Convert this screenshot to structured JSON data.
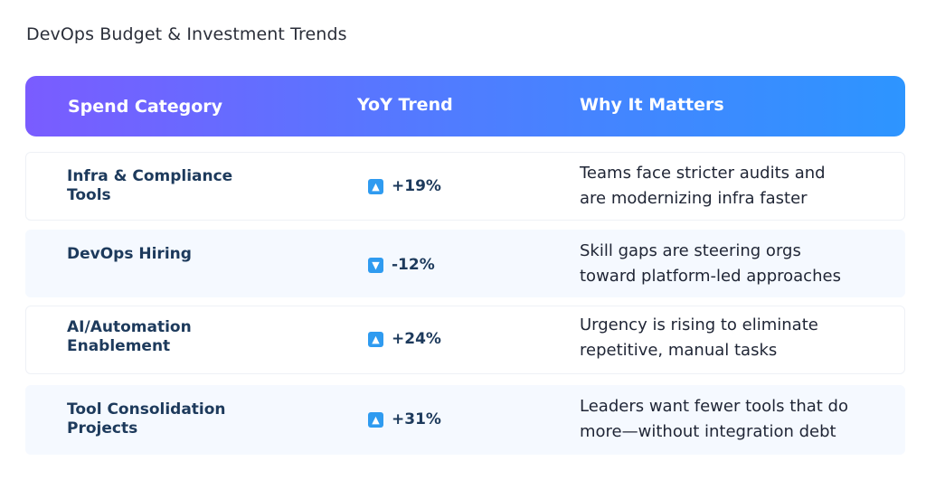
{
  "title": "DevOps Budget & Investment Trends",
  "columns": [
    "Spend Category",
    "YoY Trend",
    "Why It Matters"
  ],
  "rows": [
    {
      "category_line1": "Infra & Compliance",
      "category_line2": "Tools",
      "trend": "+19%",
      "direction": "up",
      "why_line1": "Teams face stricter audits and",
      "why_line2": "are modernizing infra faster"
    },
    {
      "category_line1": "DevOps Hiring",
      "category_line2": "",
      "trend": "-12%",
      "direction": "down",
      "why_line1": "Skill gaps are steering orgs",
      "why_line2": "toward platform-led approaches"
    },
    {
      "category_line1": "AI/Automation",
      "category_line2": "Enablement",
      "trend": "+24%",
      "direction": "up",
      "why_line1": "Urgency is rising to eliminate",
      "why_line2": "repetitive, manual tasks"
    },
    {
      "category_line1": "Tool Consolidation",
      "category_line2": "Projects",
      "trend": "+31%",
      "direction": "up",
      "why_line1": "Leaders want fewer tools that do",
      "why_line2": "more—without integration debt"
    }
  ],
  "colors": {
    "header_gradient_start": "#7a5cff",
    "header_gradient_end": "#2d95ff",
    "arrow_badge": "#2f9bf0",
    "category_text": "#1d3a5c",
    "alt_row_bg": "#f5f9ff"
  },
  "icons": {
    "up": "arrow-up-icon",
    "down": "arrow-down-icon"
  }
}
